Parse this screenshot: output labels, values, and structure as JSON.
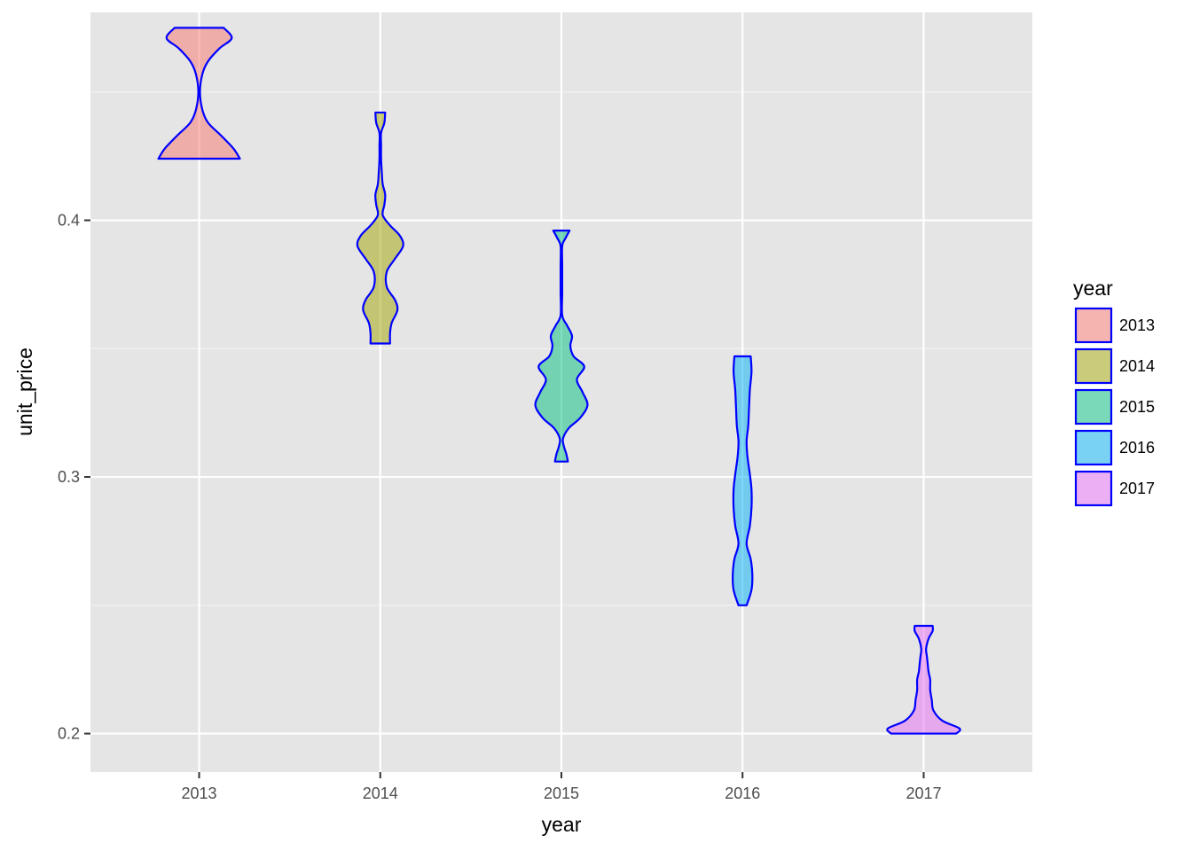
{
  "chart_data": {
    "type": "violin",
    "title": "",
    "xlabel": "year",
    "ylabel": "unit_price",
    "categories": [
      "2013",
      "2014",
      "2015",
      "2016",
      "2017"
    ],
    "ylim": [
      0.185,
      0.481
    ],
    "yticks": [
      0.2,
      0.3,
      0.4
    ],
    "ytick_labels": [
      "0.2",
      "0.3",
      "0.4"
    ],
    "grid": true,
    "legend": {
      "title": "year",
      "position": "right",
      "entries": [
        "2013",
        "2014",
        "2015",
        "2016",
        "2017"
      ]
    },
    "outline_color": "#0000ff",
    "fill_opacity": 0.5,
    "panel_background": "#e5e5e5",
    "colors": [
      "#F8766D",
      "#A3A500",
      "#00BF7D",
      "#00B0F6",
      "#E76BF3"
    ],
    "series": [
      {
        "category": "2013",
        "min": 0.424,
        "max": 0.475,
        "profile": [
          [
            0.424,
            0.5
          ],
          [
            0.428,
            0.42
          ],
          [
            0.433,
            0.27
          ],
          [
            0.438,
            0.11
          ],
          [
            0.443,
            0.04
          ],
          [
            0.45,
            0.01
          ],
          [
            0.457,
            0.04
          ],
          [
            0.462,
            0.11
          ],
          [
            0.467,
            0.25
          ],
          [
            0.471,
            0.4
          ],
          [
            0.475,
            0.3
          ]
        ]
      },
      {
        "category": "2014",
        "min": 0.352,
        "max": 0.442,
        "profile": [
          [
            0.352,
            0.12
          ],
          [
            0.356,
            0.12
          ],
          [
            0.36,
            0.14
          ],
          [
            0.365,
            0.21
          ],
          [
            0.369,
            0.18
          ],
          [
            0.374,
            0.08
          ],
          [
            0.38,
            0.08
          ],
          [
            0.385,
            0.18
          ],
          [
            0.39,
            0.28
          ],
          [
            0.394,
            0.24
          ],
          [
            0.398,
            0.12
          ],
          [
            0.402,
            0.03
          ],
          [
            0.406,
            0.05
          ],
          [
            0.41,
            0.06
          ],
          [
            0.414,
            0.03
          ],
          [
            0.418,
            0.02
          ],
          [
            0.424,
            0.01
          ],
          [
            0.429,
            0.01
          ],
          [
            0.434,
            0.01
          ],
          [
            0.438,
            0.05
          ],
          [
            0.442,
            0.06
          ]
        ]
      },
      {
        "category": "2015",
        "min": 0.306,
        "max": 0.396,
        "profile": [
          [
            0.306,
            0.08
          ],
          [
            0.309,
            0.06
          ],
          [
            0.312,
            0.03
          ],
          [
            0.315,
            0.02
          ],
          [
            0.319,
            0.09
          ],
          [
            0.323,
            0.23
          ],
          [
            0.328,
            0.32
          ],
          [
            0.333,
            0.26
          ],
          [
            0.338,
            0.19
          ],
          [
            0.343,
            0.28
          ],
          [
            0.347,
            0.15
          ],
          [
            0.351,
            0.11
          ],
          [
            0.355,
            0.13
          ],
          [
            0.359,
            0.07
          ],
          [
            0.363,
            0.01
          ],
          [
            0.372,
            0.01
          ],
          [
            0.382,
            0.01
          ],
          [
            0.39,
            0.01
          ],
          [
            0.393,
            0.05
          ],
          [
            0.396,
            0.1
          ]
        ]
      },
      {
        "category": "2016",
        "min": 0.25,
        "max": 0.347,
        "profile": [
          [
            0.25,
            0.05
          ],
          [
            0.256,
            0.11
          ],
          [
            0.262,
            0.12
          ],
          [
            0.268,
            0.1
          ],
          [
            0.274,
            0.05
          ],
          [
            0.281,
            0.09
          ],
          [
            0.288,
            0.11
          ],
          [
            0.295,
            0.11
          ],
          [
            0.301,
            0.09
          ],
          [
            0.308,
            0.06
          ],
          [
            0.314,
            0.05
          ],
          [
            0.32,
            0.07
          ],
          [
            0.327,
            0.08
          ],
          [
            0.334,
            0.09
          ],
          [
            0.341,
            0.11
          ],
          [
            0.347,
            0.1
          ]
        ]
      },
      {
        "category": "2017",
        "min": 0.2,
        "max": 0.242,
        "profile": [
          [
            0.2,
            0.4
          ],
          [
            0.202,
            0.44
          ],
          [
            0.205,
            0.23
          ],
          [
            0.209,
            0.12
          ],
          [
            0.213,
            0.1
          ],
          [
            0.217,
            0.08
          ],
          [
            0.221,
            0.08
          ],
          [
            0.224,
            0.06
          ],
          [
            0.227,
            0.05
          ],
          [
            0.23,
            0.04
          ],
          [
            0.233,
            0.03
          ],
          [
            0.237,
            0.06
          ],
          [
            0.24,
            0.11
          ],
          [
            0.242,
            0.11
          ]
        ]
      }
    ]
  }
}
